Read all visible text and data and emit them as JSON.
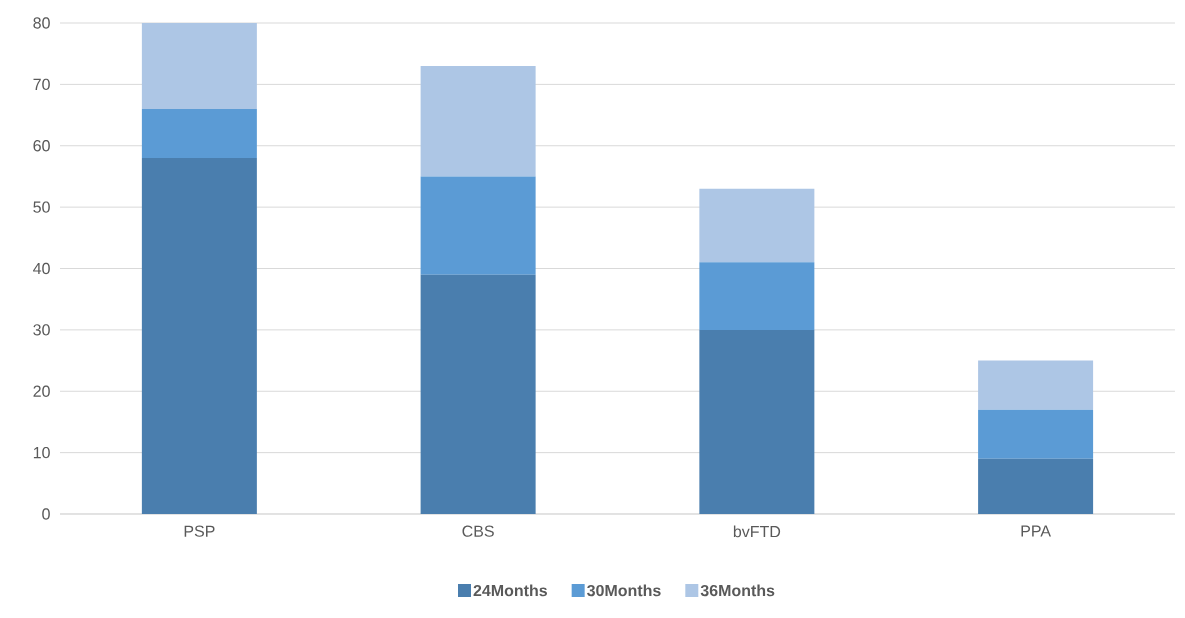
{
  "chart_data": {
    "type": "bar",
    "stacked": true,
    "categories": [
      "PSP",
      "CBS",
      "bvFTD",
      "PPA"
    ],
    "series": [
      {
        "name": "24Months",
        "color": "#4a7eae",
        "values": [
          58,
          39,
          30,
          9
        ]
      },
      {
        "name": "30Months",
        "color": "#5b9bd5",
        "values": [
          8,
          16,
          11,
          8
        ]
      },
      {
        "name": "36Months",
        "color": "#adc6e5",
        "values": [
          14,
          18,
          12,
          8
        ]
      }
    ],
    "ylim": [
      0,
      80
    ],
    "yticks": [
      0,
      10,
      20,
      30,
      40,
      50,
      60,
      70,
      80
    ],
    "grid": "y",
    "legend": "bottom"
  }
}
